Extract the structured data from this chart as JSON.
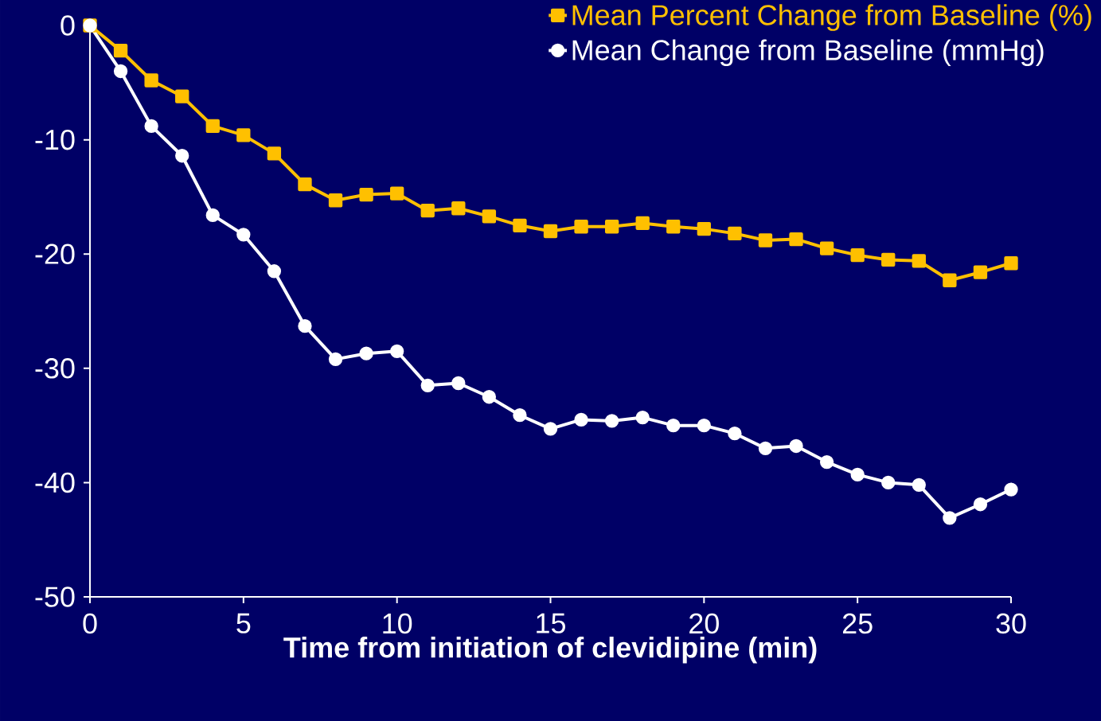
{
  "chart_data": {
    "type": "line",
    "xlabel": "Time from initiation of clevidipine (min)",
    "x": [
      0,
      1,
      2,
      3,
      4,
      5,
      6,
      7,
      8,
      9,
      10,
      11,
      12,
      13,
      14,
      15,
      16,
      17,
      18,
      19,
      20,
      21,
      22,
      23,
      24,
      25,
      26,
      27,
      28,
      29,
      30
    ],
    "series": [
      {
        "name": "Mean Percent Change from Baseline (%)",
        "color": "#ffc000",
        "marker": "square",
        "values": [
          0,
          -2.2,
          -4.8,
          -6.2,
          -8.8,
          -9.6,
          -11.2,
          -13.9,
          -15.3,
          -14.8,
          -14.7,
          -16.2,
          -16.0,
          -16.7,
          -17.5,
          -18.0,
          -17.6,
          -17.6,
          -17.3,
          -17.6,
          -17.8,
          -18.2,
          -18.8,
          -18.7,
          -19.5,
          -20.1,
          -20.5,
          -20.6,
          -22.3,
          -21.6,
          -20.8
        ]
      },
      {
        "name": "Mean Change from Baseline (mmHg)",
        "color": "#ffffff",
        "marker": "circle",
        "values": [
          0,
          -4.0,
          -8.8,
          -11.4,
          -16.6,
          -18.3,
          -21.5,
          -26.3,
          -29.2,
          -28.7,
          -28.5,
          -31.5,
          -31.3,
          -32.5,
          -34.1,
          -35.3,
          -34.5,
          -34.6,
          -34.3,
          -35.0,
          -35.0,
          -35.7,
          -37.0,
          -36.8,
          -38.2,
          -39.3,
          -40.0,
          -40.2,
          -43.1,
          -41.9,
          -40.6
        ]
      }
    ],
    "xlim": [
      0,
      30
    ],
    "xticks": [
      0,
      5,
      10,
      15,
      20,
      25,
      30
    ],
    "ylim": [
      -50,
      0
    ],
    "yticks": [
      0,
      -10,
      -20,
      -30,
      -40,
      -50
    ],
    "grid": false,
    "legend": "top right",
    "line_style": "solid"
  }
}
